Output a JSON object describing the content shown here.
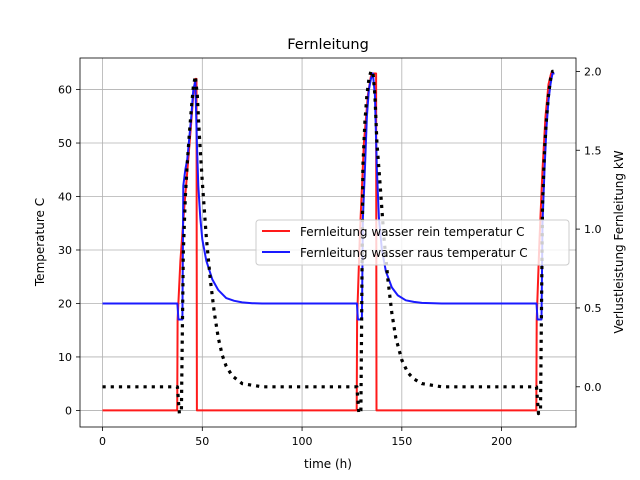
{
  "chart_data": {
    "type": "line",
    "title": "Fernleitung",
    "xlabel": "time (h)",
    "ylabel_left": "Temperature C",
    "ylabel_right": "Verlustleistung Fernleitung kW",
    "xlim": [
      -11.3,
      237.3
    ],
    "ylim_left": [
      -3.1,
      65.9
    ],
    "ylim_right": [
      -0.255,
      2.085
    ],
    "xticks": [
      0,
      50,
      100,
      150,
      200
    ],
    "yticks_left": [
      0,
      10,
      20,
      30,
      40,
      50,
      60
    ],
    "yticks_right": [
      0.0,
      0.5,
      1.0,
      1.5,
      2.0
    ],
    "ytick_labels_right": [
      "0.0",
      "0.5",
      "1.0",
      "1.5",
      "2.0"
    ],
    "grid": true,
    "legend_position": "center-right",
    "series": [
      {
        "name": "Fernleitung wasser rein temperatur C",
        "axis": "left",
        "color": "#ff1a1a",
        "style": "solid",
        "x": [
          0,
          37.4,
          37.6,
          39,
          41,
          43,
          44.5,
          45.5,
          46.5,
          47.1,
          47.3,
          127.4,
          127.6,
          129,
          131,
          133,
          134.5,
          135.5,
          136.5,
          137.1,
          137.3,
          217.4,
          217.6,
          219,
          220.5,
          222,
          223.5,
          224.8,
          226
        ],
        "y": [
          0,
          0,
          17,
          28,
          38,
          47,
          54,
          59,
          62,
          62,
          0,
          0,
          17,
          33,
          50,
          59,
          62.5,
          63,
          63,
          63,
          0,
          0,
          17,
          32,
          45,
          55,
          61,
          63,
          63
        ]
      },
      {
        "name": "Fernleitung wasser raus temperatur C",
        "axis": "left",
        "color": "#1a1aff",
        "style": "solid",
        "x": [
          0,
          37.5,
          38,
          40,
          40.5,
          41.5,
          42.5,
          43.5,
          44.5,
          45.5,
          46.5,
          47.3,
          48,
          49,
          50,
          52,
          55,
          58,
          62,
          66,
          70,
          75,
          80,
          127.5,
          128,
          130,
          130.5,
          131.5,
          132.5,
          133.5,
          134.5,
          135.5,
          136.5,
          137.5,
          138.5,
          140,
          142,
          145,
          148,
          152,
          156,
          160,
          170,
          217.5,
          218,
          220,
          220.5,
          221.5,
          222.5,
          223.5,
          224.5,
          225.5,
          226.5
        ],
        "y": [
          20,
          20,
          17,
          17,
          42,
          45,
          47,
          51,
          55,
          60,
          61.5,
          50,
          42,
          36,
          32,
          28,
          24.5,
          22.5,
          21,
          20.5,
          20.2,
          20.05,
          20,
          20,
          17,
          17,
          36,
          45,
          55,
          60,
          62,
          63,
          59,
          45,
          36,
          30,
          26,
          23,
          21.5,
          20.6,
          20.3,
          20.1,
          20,
          20,
          17,
          17,
          35,
          45,
          53,
          58,
          61,
          63,
          63
        ]
      },
      {
        "name": "",
        "axis": "right",
        "color": "#000000",
        "style": "dotted",
        "x": [
          0,
          37.5,
          38.5,
          39.5,
          40.5,
          41.5,
          42.5,
          43.5,
          44.5,
          45.5,
          46.5,
          47.5,
          48.5,
          50,
          52,
          54,
          56,
          58,
          60,
          62,
          65,
          70,
          80,
          90,
          100,
          110,
          120,
          127.5,
          128.5,
          129.5,
          130.5,
          131.5,
          132.5,
          133.5,
          134.5,
          135.5,
          136.5,
          137.5,
          139,
          141,
          143,
          145,
          147,
          150,
          153,
          156,
          160,
          165,
          170,
          180,
          200,
          217.5,
          218.5,
          219.5,
          220.5,
          221.5,
          222.5,
          223.5,
          224.5,
          225.5,
          226
        ],
        "y": [
          0,
          0,
          -0.17,
          -0.15,
          0.85,
          1.2,
          1.42,
          1.6,
          1.76,
          1.9,
          1.97,
          1.85,
          1.6,
          1.3,
          0.95,
          0.68,
          0.47,
          0.31,
          0.2,
          0.13,
          0.07,
          0.02,
          0,
          0,
          0,
          0,
          0,
          0,
          -0.17,
          -0.15,
          1.4,
          1.68,
          1.85,
          1.95,
          2.0,
          2.0,
          1.85,
          1.55,
          1.3,
          0.95,
          0.68,
          0.47,
          0.31,
          0.17,
          0.09,
          0.05,
          0.02,
          0.01,
          0,
          0,
          0,
          0,
          -0.17,
          -0.15,
          1.15,
          1.5,
          1.7,
          1.85,
          1.95,
          2.0,
          2.0
        ]
      }
    ]
  }
}
